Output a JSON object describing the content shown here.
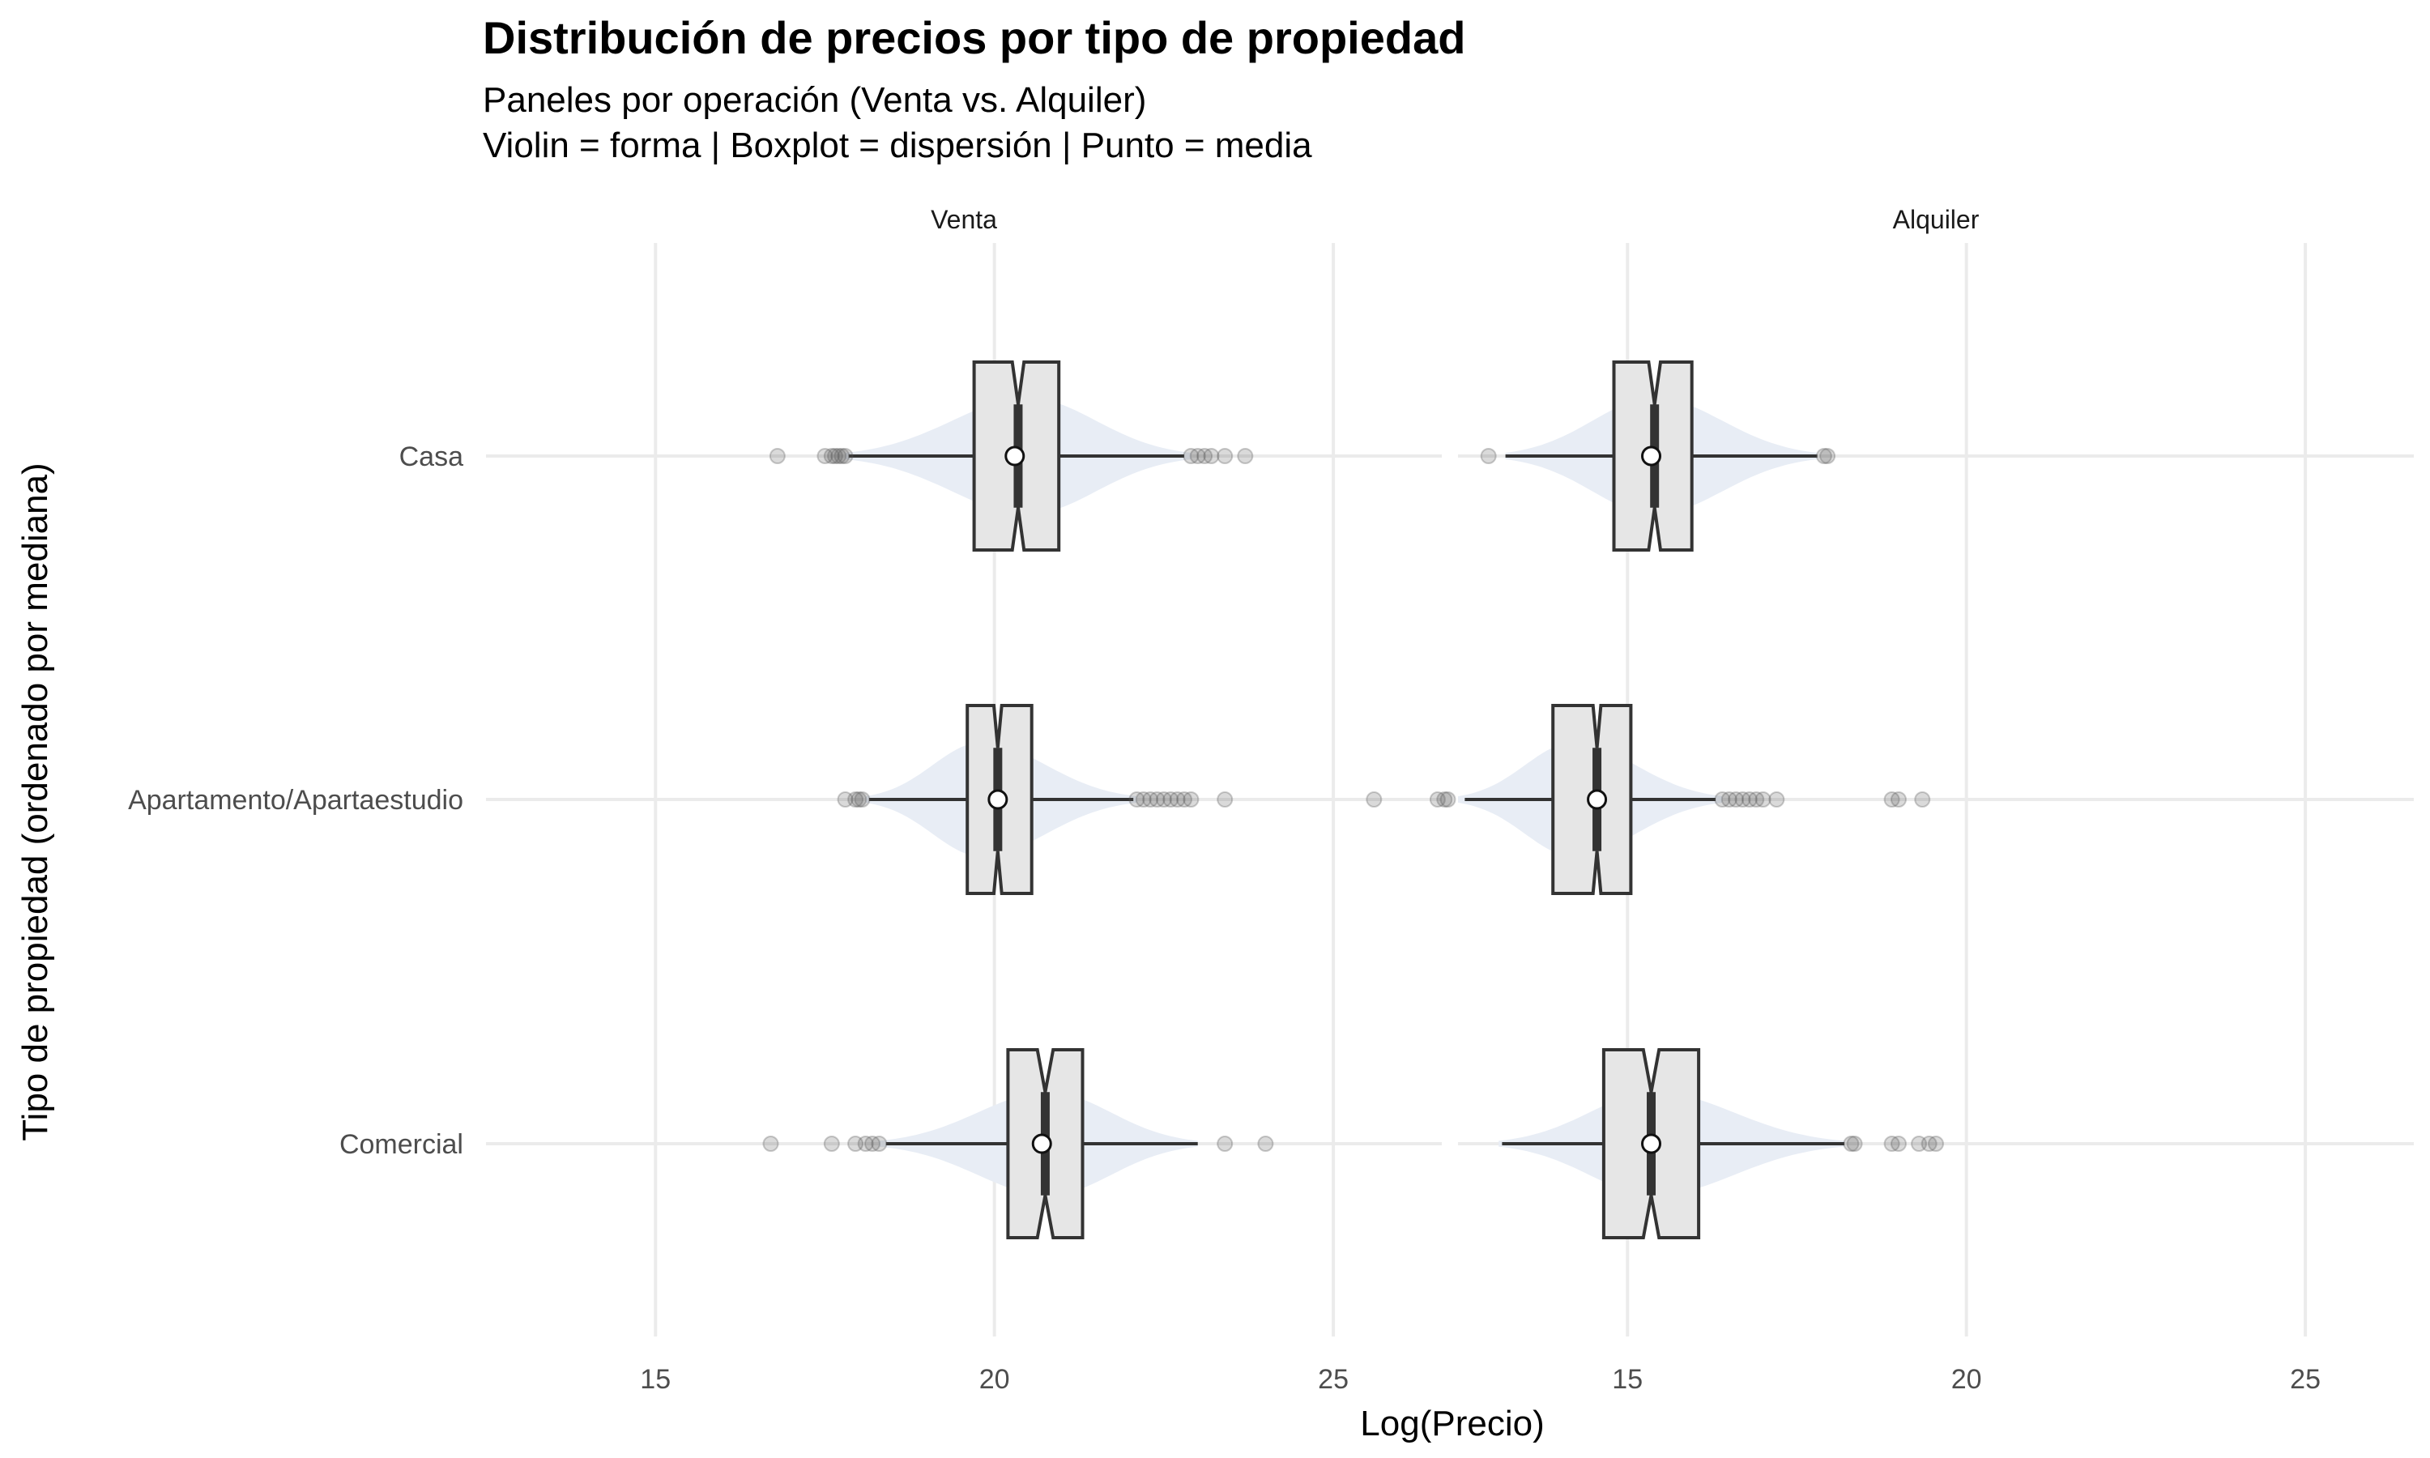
{
  "title": "Distribución de precios por tipo de propiedad",
  "subtitle_line1": "Paneles por operación (Venta vs. Alquiler)",
  "subtitle_line2": "Violin = forma | Boxplot = dispersión | Punto = media",
  "colors": {
    "violin_fill": "#e8edf5",
    "box_fill": "#e6e6e6",
    "box_stroke": "#333333",
    "grid": "#ebebeb",
    "outlier": "#555555",
    "mean_fill": "#ffffff"
  },
  "chart_data": {
    "type": "violin+boxplot",
    "xlabel": "Log(Precio)",
    "ylabel": "Tipo de propiedad (ordenado por mediana)",
    "x_ticks": [
      "15",
      "20",
      "25"
    ],
    "xlim": [
      12.5,
      26.6
    ],
    "categories": [
      "Casa",
      "Apartamento/Apartaestudio",
      "Comercial"
    ],
    "panels": [
      {
        "name": "Venta",
        "groups": [
          {
            "category": "Casa",
            "q1": 19.7,
            "median": 20.35,
            "q3": 20.95,
            "whisker_low": 17.85,
            "whisker_high": 22.8,
            "mean": 20.3,
            "violin_min": 17.8,
            "violin_max": 22.9,
            "violin_peak": 20.5,
            "violin_halfwidth": 0.45,
            "notch": 0.06,
            "outliers": [
              16.8,
              17.5,
              17.6,
              17.65,
              17.7,
              17.75,
              17.8,
              22.9,
              23.0,
              23.1,
              23.2,
              23.4,
              23.7
            ]
          },
          {
            "category": "Apartamento/Apartaestudio",
            "q1": 19.6,
            "median": 20.05,
            "q3": 20.55,
            "whisker_low": 18.15,
            "whisker_high": 22.05,
            "mean": 20.05,
            "violin_min": 18.1,
            "violin_max": 22.1,
            "violin_peak": 19.8,
            "violin_halfwidth": 0.44,
            "notch": 0.04,
            "outliers": [
              17.8,
              17.95,
              18.0,
              18.05,
              22.1,
              22.2,
              22.3,
              22.4,
              22.5,
              22.6,
              22.7,
              22.8,
              22.9,
              23.4,
              25.6
            ]
          },
          {
            "category": "Comercial",
            "q1": 20.2,
            "median": 20.75,
            "q3": 21.3,
            "whisker_low": 18.4,
            "whisker_high": 23.0,
            "mean": 20.7,
            "violin_min": 18.3,
            "violin_max": 23.0,
            "violin_peak": 20.8,
            "violin_halfwidth": 0.4,
            "notch": 0.08,
            "outliers": [
              16.7,
              17.6,
              17.95,
              18.1,
              18.2,
              18.3,
              23.4,
              24.0
            ]
          }
        ]
      },
      {
        "name": "Alquiler",
        "groups": [
          {
            "category": "Casa",
            "q1": 14.8,
            "median": 15.4,
            "q3": 15.95,
            "whisker_low": 13.2,
            "whisker_high": 17.8,
            "mean": 15.35,
            "violin_min": 13.2,
            "violin_max": 17.8,
            "violin_peak": 15.4,
            "violin_halfwidth": 0.45,
            "notch": 0.06,
            "outliers": [
              12.95,
              17.9,
              17.95
            ]
          },
          {
            "category": "Apartamento/Apartaestudio",
            "q1": 13.9,
            "median": 14.55,
            "q3": 15.05,
            "whisker_low": 12.6,
            "whisker_high": 16.3,
            "mean": 14.55,
            "violin_min": 12.5,
            "violin_max": 16.4,
            "violin_peak": 14.2,
            "violin_halfwidth": 0.44,
            "notch": 0.04,
            "outliers": [
              12.2,
              12.3,
              12.35,
              16.4,
              16.5,
              16.6,
              16.7,
              16.8,
              16.9,
              17.0,
              17.2,
              18.9,
              19.0,
              19.35
            ]
          },
          {
            "category": "Comercial",
            "q1": 14.65,
            "median": 15.35,
            "q3": 16.05,
            "whisker_low": 13.15,
            "whisker_high": 18.2,
            "mean": 15.35,
            "violin_min": 13.1,
            "violin_max": 18.2,
            "violin_peak": 15.4,
            "violin_halfwidth": 0.4,
            "notch": 0.08,
            "outliers": [
              18.3,
              18.35,
              18.9,
              19.0,
              19.3,
              19.45,
              19.55
            ]
          }
        ]
      }
    ]
  }
}
